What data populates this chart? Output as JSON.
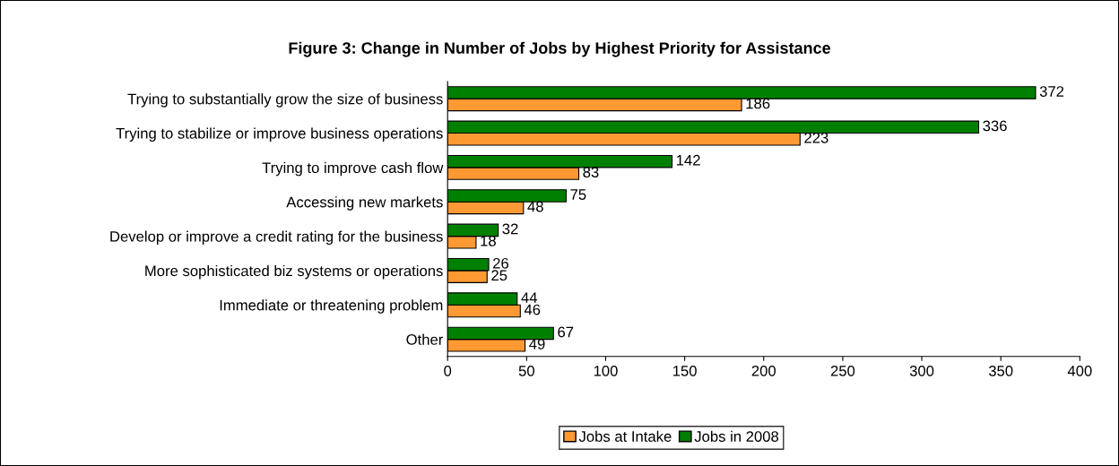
{
  "chart_data": {
    "type": "bar",
    "orientation": "horizontal",
    "title": "Figure 3: Change in Number of Jobs by Highest Priority for Assistance",
    "categories": [
      "Trying to substantially grow the size of business",
      "Trying to stabilize or improve business operations",
      "Trying to improve cash flow",
      "Accessing new markets",
      "Develop or improve a credit rating for the business",
      "More sophisticated biz systems or operations",
      "Immediate or threatening problem",
      "Other"
    ],
    "series": [
      {
        "name": "Jobs at Intake",
        "color": "#ff9933",
        "values": [
          186,
          223,
          83,
          48,
          18,
          25,
          46,
          49
        ]
      },
      {
        "name": "Jobs in 2008",
        "color": "#008000",
        "values": [
          372,
          336,
          142,
          75,
          32,
          26,
          44,
          67
        ]
      }
    ],
    "xlim": [
      0,
      400
    ],
    "xticks": [
      0,
      50,
      100,
      150,
      200,
      250,
      300,
      350,
      400
    ],
    "data_labels": true,
    "legend": "bottom",
    "grid": false
  }
}
